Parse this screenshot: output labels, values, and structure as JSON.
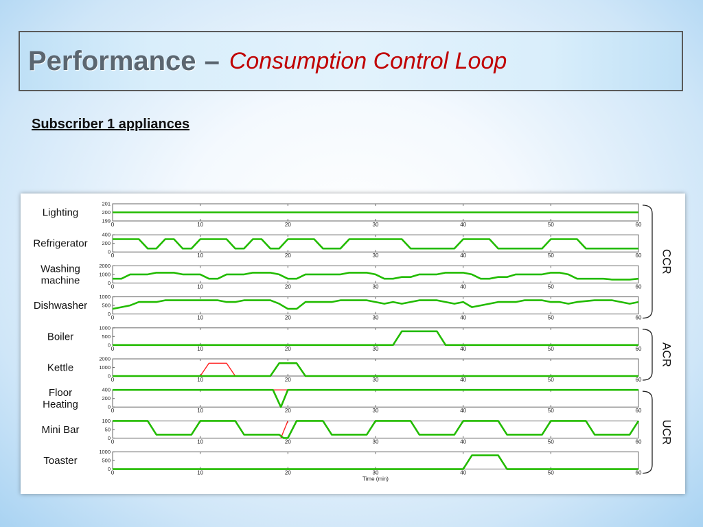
{
  "slide": {
    "title": "Performance",
    "title_separator": "–",
    "title_subtitle": "Consumption Control Loop",
    "subheading": "Subscriber 1 appliances"
  },
  "colors": {
    "on": "#22bb00",
    "off": "#ff2222",
    "axis": "#666666"
  },
  "chart_data": {
    "type": "line",
    "xlabel": "Time (min)",
    "xlim": [
      0,
      60
    ],
    "xticks": [
      0,
      10,
      20,
      30,
      40,
      50,
      60
    ],
    "groups": [
      {
        "label": "CCR",
        "rows": [
          0,
          1,
          2,
          3
        ]
      },
      {
        "label": "ACR",
        "rows": [
          4,
          5
        ]
      },
      {
        "label": "UCR",
        "rows": [
          6,
          7,
          8
        ]
      }
    ],
    "panels": [
      {
        "label": "Lighting",
        "yticks": [
          199,
          200,
          201
        ],
        "ylim": [
          199,
          201
        ],
        "series": [
          {
            "color": "green",
            "points": [
              [
                0,
                200
              ],
              [
                60,
                200
              ]
            ]
          }
        ]
      },
      {
        "label": "Refrigerator",
        "yticks": [
          0,
          200,
          400
        ],
        "ylim": [
          0,
          400
        ],
        "series": [
          {
            "color": "green",
            "points": [
              [
                0,
                300
              ],
              [
                3,
                300
              ],
              [
                4,
                80
              ],
              [
                5,
                80
              ],
              [
                6,
                300
              ],
              [
                7,
                300
              ],
              [
                8,
                80
              ],
              [
                9,
                80
              ],
              [
                10,
                300
              ],
              [
                13,
                300
              ],
              [
                14,
                80
              ],
              [
                15,
                80
              ],
              [
                16,
                300
              ],
              [
                17,
                300
              ],
              [
                18,
                80
              ],
              [
                19,
                80
              ],
              [
                20,
                300
              ],
              [
                23,
                300
              ],
              [
                24,
                80
              ],
              [
                26,
                80
              ],
              [
                27,
                300
              ],
              [
                33,
                300
              ],
              [
                34,
                80
              ],
              [
                39,
                80
              ],
              [
                40,
                300
              ],
              [
                43,
                300
              ],
              [
                44,
                80
              ],
              [
                49,
                80
              ],
              [
                50,
                300
              ],
              [
                53,
                300
              ],
              [
                54,
                80
              ],
              [
                60,
                80
              ]
            ]
          }
        ]
      },
      {
        "label": "Washing machine",
        "yticks": [
          0,
          1000,
          2000
        ],
        "ylim": [
          0,
          2000
        ],
        "series": [
          {
            "color": "green",
            "points": [
              [
                0,
                500
              ],
              [
                1,
                500
              ],
              [
                2,
                1000
              ],
              [
                4,
                1000
              ],
              [
                5,
                1200
              ],
              [
                7,
                1200
              ],
              [
                8,
                1000
              ],
              [
                10,
                1000
              ],
              [
                11,
                500
              ],
              [
                12,
                500
              ],
              [
                13,
                1000
              ],
              [
                15,
                1000
              ],
              [
                16,
                1200
              ],
              [
                18,
                1200
              ],
              [
                19,
                1000
              ],
              [
                20,
                500
              ],
              [
                21,
                500
              ],
              [
                22,
                1000
              ],
              [
                26,
                1000
              ],
              [
                27,
                1200
              ],
              [
                29,
                1200
              ],
              [
                30,
                1000
              ],
              [
                31,
                500
              ],
              [
                32,
                500
              ],
              [
                33,
                700
              ],
              [
                34,
                700
              ],
              [
                35,
                1000
              ],
              [
                37,
                1000
              ],
              [
                38,
                1200
              ],
              [
                40,
                1200
              ],
              [
                41,
                1000
              ],
              [
                42,
                500
              ],
              [
                43,
                500
              ],
              [
                44,
                700
              ],
              [
                45,
                700
              ],
              [
                46,
                1000
              ],
              [
                49,
                1000
              ],
              [
                50,
                1200
              ],
              [
                51,
                1200
              ],
              [
                52,
                1000
              ],
              [
                53,
                500
              ],
              [
                56,
                500
              ],
              [
                57,
                400
              ],
              [
                59,
                400
              ],
              [
                60,
                500
              ]
            ]
          }
        ]
      },
      {
        "label": "Dishwasher",
        "yticks": [
          0,
          500,
          1000
        ],
        "ylim": [
          0,
          1000
        ],
        "series": [
          {
            "color": "green",
            "points": [
              [
                0,
                300
              ],
              [
                2,
                500
              ],
              [
                3,
                700
              ],
              [
                5,
                700
              ],
              [
                6,
                800
              ],
              [
                12,
                800
              ],
              [
                13,
                700
              ],
              [
                14,
                700
              ],
              [
                15,
                800
              ],
              [
                18,
                800
              ],
              [
                19,
                600
              ],
              [
                20,
                300
              ],
              [
                21,
                300
              ],
              [
                22,
                700
              ],
              [
                25,
                700
              ],
              [
                26,
                800
              ],
              [
                29,
                800
              ],
              [
                30,
                700
              ],
              [
                31,
                600
              ],
              [
                32,
                700
              ],
              [
                33,
                600
              ],
              [
                34,
                700
              ],
              [
                35,
                800
              ],
              [
                37,
                800
              ],
              [
                38,
                700
              ],
              [
                39,
                600
              ],
              [
                40,
                700
              ],
              [
                41,
                400
              ],
              [
                43,
                600
              ],
              [
                44,
                700
              ],
              [
                46,
                700
              ],
              [
                47,
                800
              ],
              [
                49,
                800
              ],
              [
                50,
                700
              ],
              [
                51,
                700
              ],
              [
                52,
                600
              ],
              [
                53,
                700
              ],
              [
                55,
                800
              ],
              [
                57,
                800
              ],
              [
                58,
                700
              ],
              [
                59,
                600
              ],
              [
                60,
                700
              ]
            ]
          }
        ]
      },
      {
        "label": "Boiler",
        "yticks": [
          0,
          500,
          1000
        ],
        "ylim": [
          0,
          1000
        ],
        "series": [
          {
            "color": "green",
            "points": [
              [
                0,
                0
              ],
              [
                32,
                0
              ],
              [
                33,
                800
              ],
              [
                37,
                800
              ],
              [
                38,
                0
              ],
              [
                60,
                0
              ]
            ]
          }
        ]
      },
      {
        "label": "Kettle",
        "yticks": [
          0,
          1000,
          2000
        ],
        "ylim": [
          0,
          2000
        ],
        "series": [
          {
            "color": "red",
            "points": [
              [
                10,
                0
              ],
              [
                11,
                1500
              ],
              [
                13,
                1500
              ],
              [
                14,
                0
              ]
            ]
          },
          {
            "color": "green",
            "points": [
              [
                0,
                0
              ],
              [
                18,
                0
              ],
              [
                19,
                1500
              ],
              [
                21,
                1500
              ],
              [
                22,
                0
              ],
              [
                60,
                0
              ]
            ]
          }
        ]
      },
      {
        "label": "Floor Heating",
        "yticks": [
          0,
          200,
          400
        ],
        "ylim": [
          0,
          400
        ],
        "series": [
          {
            "color": "red",
            "points": [
              [
                18.3,
                400
              ],
              [
                20,
                400
              ]
            ]
          },
          {
            "color": "green",
            "points": [
              [
                0,
                400
              ],
              [
                18.3,
                400
              ],
              [
                19.2,
                0
              ],
              [
                20,
                400
              ],
              [
                60,
                400
              ]
            ]
          }
        ]
      },
      {
        "label": "Mini Bar",
        "yticks": [
          0,
          50,
          100
        ],
        "ylim": [
          0,
          100
        ],
        "series": [
          {
            "color": "red",
            "points": [
              [
                19.2,
                0
              ],
              [
                20,
                100
              ]
            ]
          },
          {
            "color": "green",
            "points": [
              [
                0,
                100
              ],
              [
                4,
                100
              ],
              [
                5,
                20
              ],
              [
                9,
                20
              ],
              [
                10,
                100
              ],
              [
                14,
                100
              ],
              [
                15,
                20
              ],
              [
                19,
                20
              ],
              [
                19.5,
                0
              ],
              [
                20,
                0
              ],
              [
                21,
                100
              ],
              [
                24,
                100
              ],
              [
                25,
                20
              ],
              [
                29,
                20
              ],
              [
                30,
                100
              ],
              [
                34,
                100
              ],
              [
                35,
                20
              ],
              [
                39,
                20
              ],
              [
                40,
                100
              ],
              [
                44,
                100
              ],
              [
                45,
                20
              ],
              [
                49,
                20
              ],
              [
                50,
                100
              ],
              [
                54,
                100
              ],
              [
                55,
                20
              ],
              [
                59,
                20
              ],
              [
                60,
                100
              ]
            ]
          }
        ]
      },
      {
        "label": "Toaster",
        "yticks": [
          0,
          500,
          1000
        ],
        "ylim": [
          0,
          1000
        ],
        "series": [
          {
            "color": "green",
            "points": [
              [
                0,
                0
              ],
              [
                40,
                0
              ],
              [
                41,
                800
              ],
              [
                44,
                800
              ],
              [
                45,
                0
              ],
              [
                60,
                0
              ]
            ]
          }
        ]
      }
    ]
  }
}
